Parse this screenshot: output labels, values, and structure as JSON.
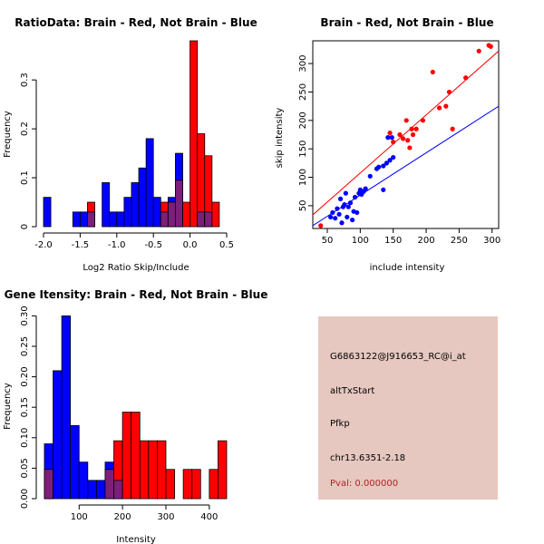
{
  "colors": {
    "red": "#ff0000",
    "blue": "#0000ff",
    "overlap": "#7b1f7b",
    "panel_bg": "#e6c8c0",
    "pval": "#b22222",
    "axis": "#000000"
  },
  "chart_data": [
    {
      "id": "ratio",
      "type": "bar",
      "title": "RatioData: Brain - Red, Not Brain - Blue",
      "xlabel": "Log2 Ratio Skip/Include",
      "ylabel": "Frequency",
      "xlim": [
        -2.0,
        0.5
      ],
      "ylim": [
        0,
        0.38
      ],
      "xticks": [
        -2.0,
        -1.5,
        -1.0,
        -0.5,
        0.0,
        0.5
      ],
      "xtick_labels": [
        "-2.0",
        "-1.5",
        "-1.0",
        "-0.5",
        "0.0",
        "0.5"
      ],
      "yticks": [
        0,
        0.1,
        0.2,
        0.3
      ],
      "ytick_labels": [
        "0",
        "0.1",
        "0.2",
        "0.3"
      ],
      "bin_edges": [
        -2.0,
        -1.9,
        -1.8,
        -1.7,
        -1.6,
        -1.5,
        -1.4,
        -1.3,
        -1.2,
        -1.1,
        -1.0,
        -0.9,
        -0.8,
        -0.7,
        -0.6,
        -0.5,
        -0.4,
        -0.3,
        -0.2,
        -0.1,
        0.0,
        0.1,
        0.2,
        0.3,
        0.4
      ],
      "series": [
        {
          "name": "Brain",
          "color": "red",
          "values": [
            0,
            0,
            0,
            0,
            0,
            0,
            0.05,
            0,
            0,
            0,
            0,
            0,
            0,
            0,
            0,
            0,
            0.05,
            0.05,
            0.095,
            0.05,
            0.38,
            0.19,
            0.145,
            0.05
          ]
        },
        {
          "name": "Not Brain",
          "color": "blue",
          "values": [
            0.06,
            0,
            0,
            0,
            0.03,
            0.03,
            0.03,
            0,
            0.09,
            0.03,
            0.03,
            0.06,
            0.09,
            0.12,
            0.18,
            0.06,
            0.03,
            0.06,
            0.15,
            0,
            0,
            0.03,
            0.03,
            0
          ]
        }
      ]
    },
    {
      "id": "scatter",
      "type": "scatter",
      "title": "Brain - Red, Not Brain - Blue",
      "xlabel": "include intensity",
      "ylabel": "skip intensity",
      "xlim": [
        28,
        310
      ],
      "ylim": [
        10,
        340
      ],
      "xticks": [
        50,
        100,
        150,
        200,
        250,
        300
      ],
      "xtick_labels": [
        "50",
        "100",
        "150",
        "200",
        "250",
        "300"
      ],
      "yticks": [
        50,
        100,
        150,
        200,
        250,
        300
      ],
      "ytick_labels": [
        "50",
        "100",
        "150",
        "200",
        "250",
        "300"
      ],
      "series": [
        {
          "name": "Brain",
          "color": "red",
          "points": [
            [
              40,
              15
            ],
            [
              145,
              178
            ],
            [
              150,
              162
            ],
            [
              160,
              175
            ],
            [
              165,
              168
            ],
            [
              170,
              200
            ],
            [
              172,
              165
            ],
            [
              175,
              152
            ],
            [
              178,
              185
            ],
            [
              180,
              175
            ],
            [
              185,
              185
            ],
            [
              195,
              200
            ],
            [
              210,
              285
            ],
            [
              220,
              222
            ],
            [
              230,
              225
            ],
            [
              235,
              250
            ],
            [
              240,
              185
            ],
            [
              260,
              275
            ],
            [
              280,
              322
            ],
            [
              295,
              332
            ],
            [
              298,
              330
            ]
          ],
          "fit": [
            [
              28,
              34
            ],
            [
              310,
              322
            ]
          ]
        },
        {
          "name": "Not Brain",
          "color": "blue",
          "points": [
            [
              55,
              30
            ],
            [
              58,
              38
            ],
            [
              62,
              28
            ],
            [
              65,
              45
            ],
            [
              68,
              35
            ],
            [
              70,
              62
            ],
            [
              72,
              20
            ],
            [
              74,
              48
            ],
            [
              76,
              52
            ],
            [
              78,
              72
            ],
            [
              80,
              30
            ],
            [
              82,
              48
            ],
            [
              85,
              55
            ],
            [
              88,
              25
            ],
            [
              90,
              40
            ],
            [
              92,
              65
            ],
            [
              95,
              38
            ],
            [
              98,
              72
            ],
            [
              100,
              78
            ],
            [
              102,
              70
            ],
            [
              105,
              75
            ],
            [
              108,
              80
            ],
            [
              115,
              102
            ],
            [
              125,
              115
            ],
            [
              128,
              118
            ],
            [
              135,
              120
            ],
            [
              140,
              125
            ],
            [
              142,
              170
            ],
            [
              145,
              130
            ],
            [
              148,
              170
            ],
            [
              150,
              135
            ],
            [
              135,
              78
            ]
          ],
          "fit": [
            [
              28,
              15
            ],
            [
              310,
              225
            ]
          ]
        }
      ]
    },
    {
      "id": "intensity",
      "type": "bar",
      "title": "Gene Itensity: Brain - Red, Not Brain - Blue",
      "xlabel": "Intensity",
      "ylabel": "Frequency",
      "xlim": [
        18,
        440
      ],
      "ylim": [
        0,
        0.305
      ],
      "xticks": [
        100,
        200,
        300,
        400
      ],
      "xtick_labels": [
        "100",
        "200",
        "300",
        "400"
      ],
      "yticks": [
        0,
        0.05,
        0.1,
        0.15,
        0.2,
        0.25,
        0.3
      ],
      "ytick_labels": [
        "0.00",
        "0.05",
        "0.10",
        "0.15",
        "0.20",
        "0.25",
        "0.30"
      ],
      "bin_edges": [
        20,
        40,
        60,
        80,
        100,
        120,
        140,
        160,
        180,
        200,
        220,
        240,
        260,
        280,
        300,
        320,
        340,
        360,
        380,
        400,
        420,
        440
      ],
      "series": [
        {
          "name": "Brain",
          "color": "red",
          "values": [
            0.048,
            0,
            0,
            0,
            0,
            0,
            0,
            0.048,
            0.095,
            0.142,
            0.142,
            0.095,
            0.095,
            0.095,
            0.048,
            0,
            0.048,
            0.048,
            0,
            0.048,
            0.095
          ]
        },
        {
          "name": "Not Brain",
          "color": "blue",
          "values": [
            0.09,
            0.21,
            0.3,
            0.12,
            0.06,
            0.03,
            0.03,
            0.06,
            0.03,
            0,
            0,
            0,
            0,
            0,
            0,
            0,
            0,
            0,
            0,
            0,
            0
          ]
        }
      ]
    }
  ],
  "info_panel": {
    "probe": "G6863122@J916653_RC@i_at",
    "event": "altTxStart",
    "gene": "Pfkp",
    "location": "chr13.6351-2.18",
    "pval": "Pval: 0.000000"
  }
}
